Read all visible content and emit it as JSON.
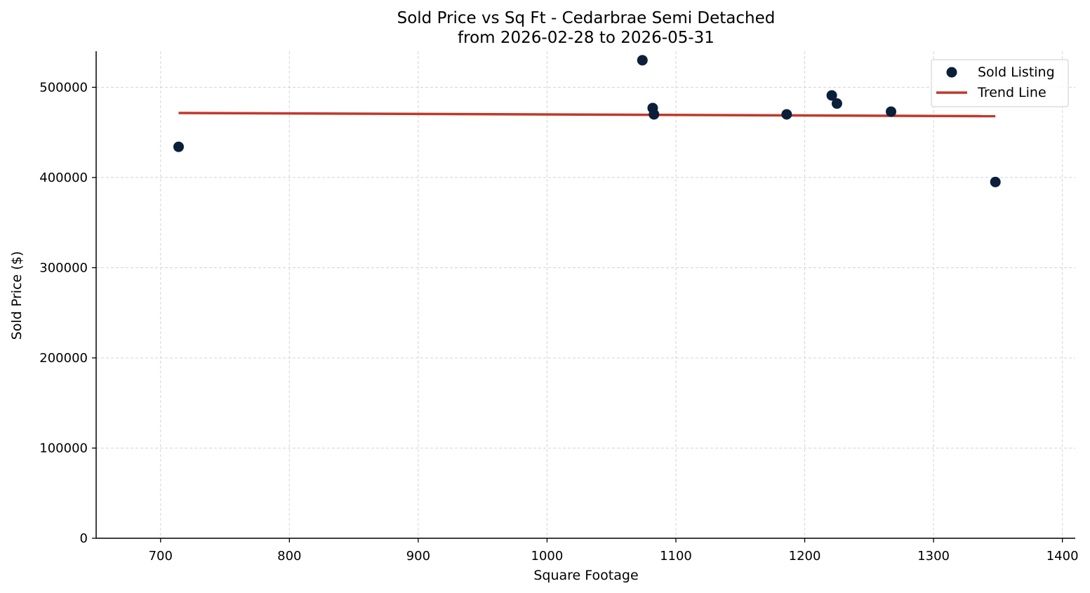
{
  "chart_data": {
    "type": "scatter",
    "title": "Sold Price vs Sq Ft - Cedarbrae Semi Detached",
    "subtitle": "from 2026-02-28 to 2026-05-31",
    "xlabel": "Square Footage",
    "ylabel": "Sold Price ($)",
    "xlim": [
      650,
      1410
    ],
    "ylim": [
      0,
      540000
    ],
    "x_ticks": [
      700,
      800,
      900,
      1000,
      1100,
      1200,
      1300,
      1400
    ],
    "y_ticks": [
      0,
      100000,
      200000,
      300000,
      400000,
      500000
    ],
    "grid": true,
    "legend_position": "top-right",
    "series": [
      {
        "name": "Sold Listing",
        "kind": "scatter",
        "color": "#0b1f3a",
        "points": [
          {
            "x": 714,
            "y": 434000
          },
          {
            "x": 1074,
            "y": 530000
          },
          {
            "x": 1082,
            "y": 477000
          },
          {
            "x": 1083,
            "y": 470000
          },
          {
            "x": 1186,
            "y": 470000
          },
          {
            "x": 1221,
            "y": 491000
          },
          {
            "x": 1225,
            "y": 482000
          },
          {
            "x": 1267,
            "y": 473000
          },
          {
            "x": 1348,
            "y": 395000
          }
        ]
      },
      {
        "name": "Trend Line",
        "kind": "line",
        "color": "#c0392b",
        "points": [
          {
            "x": 714,
            "y": 471500
          },
          {
            "x": 1348,
            "y": 468000
          }
        ]
      }
    ]
  }
}
